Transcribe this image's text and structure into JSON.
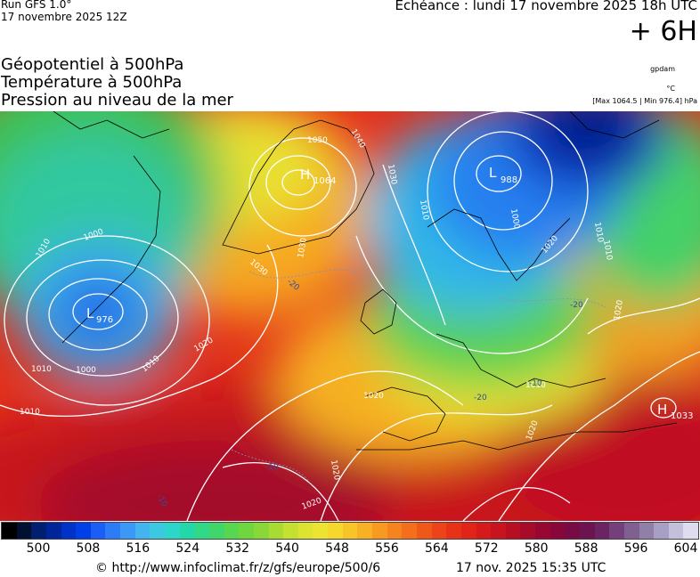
{
  "header": {
    "run": "Run GFS 1.0°",
    "run_date": "17 novembre 2025 12Z",
    "echeance": "Echéance : lundi 17 novembre 2025 18h UTC",
    "offset": "+ 6H"
  },
  "parameters": [
    "Géopotentiel à 500hPa",
    "Température à 500hPa",
    "Pression au niveau de la mer"
  ],
  "units": {
    "geopotential": "gpdam",
    "temperature": "°C",
    "pressure_range": "[Max 1064.5 | Min 976.4] hPa"
  },
  "map": {
    "isobars": [
      {
        "label": "1064",
        "kind": "H"
      },
      {
        "label": "988",
        "kind": "L"
      },
      {
        "label": "976",
        "kind": "L"
      },
      {
        "label": "1033",
        "kind": "H"
      }
    ],
    "isobar_labels": [
      "1050",
      "1040",
      "1030",
      "1030",
      "1030",
      "1010",
      "1000",
      "1010",
      "1000",
      "1010",
      "1010",
      "1000",
      "1010",
      "1020",
      "1020",
      "1020",
      "1020",
      "1020",
      "1020",
      "1010",
      "1020",
      "1010",
      "1010"
    ],
    "temperature_labels": [
      "-20",
      "-20",
      "-20",
      "-10",
      "-10",
      "-10"
    ]
  },
  "scale": {
    "colors": [
      "#000000",
      "#001030",
      "#001f70",
      "#00249a",
      "#0032c8",
      "#003ee6",
      "#1a5ef5",
      "#2c7cf8",
      "#3c98f6",
      "#44b4f0",
      "#3cc8e0",
      "#2cd6c8",
      "#22d8a8",
      "#30d888",
      "#40d66a",
      "#58d650",
      "#70d640",
      "#8ad838",
      "#a8dc30",
      "#c4e030",
      "#dce430",
      "#ece430",
      "#f6d82c",
      "#f8c428",
      "#f8b024",
      "#f89a20",
      "#f6841e",
      "#f46e1c",
      "#f0581a",
      "#ec4418",
      "#e83218",
      "#e22418",
      "#d61a1c",
      "#c8141e",
      "#b80e22",
      "#a80a2a",
      "#980632",
      "#88063a",
      "#780a44",
      "#6c1450",
      "#6a2464",
      "#74407c",
      "#806090",
      "#9080a8",
      "#a8a0c4",
      "#c4c0dc",
      "#dedcee"
    ],
    "labels": [
      "500",
      "508",
      "516",
      "524",
      "532",
      "540",
      "548",
      "556",
      "564",
      "572",
      "580",
      "588",
      "596",
      "604"
    ]
  },
  "footer": {
    "copyright": "© http://www.infoclimat.fr/z/gfs/europe/500/6",
    "stamp": "17 nov. 2025 15:35 UTC"
  }
}
